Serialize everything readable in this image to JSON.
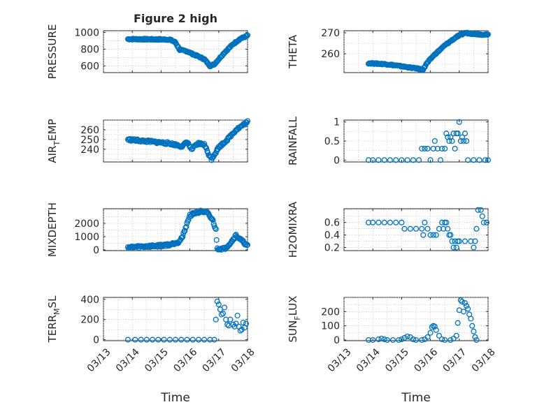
{
  "figure": {
    "title": "Figure 2 high",
    "colors": {
      "marker": "#0072bd",
      "axes": "#262626",
      "grid": "#bdbdbd",
      "background": "#ffffff"
    }
  },
  "chart_data": [
    {
      "id": "pressure",
      "type": "scatter",
      "marker": "circle",
      "title": "Figure 2 high",
      "xlabel": "",
      "ylabel": "PRESSURE",
      "xlim": [
        0,
        5
      ],
      "ylim": [
        520,
        1020
      ],
      "yticks": [
        600,
        800,
        1000
      ],
      "xticklabels": [
        "03/13",
        "03/14",
        "03/15",
        "03/16",
        "03/17",
        "03/18"
      ],
      "show_xticklabels": false,
      "grid": true,
      "profile": [
        [
          0.85,
          920
        ],
        [
          2.3,
          915
        ],
        [
          2.5,
          880
        ],
        [
          2.65,
          790
        ],
        [
          2.9,
          775
        ],
        [
          3.1,
          740
        ],
        [
          3.25,
          720
        ],
        [
          3.5,
          680
        ],
        [
          3.7,
          600
        ],
        [
          3.85,
          620
        ],
        [
          4.2,
          760
        ],
        [
          4.5,
          860
        ],
        [
          4.75,
          925
        ],
        [
          5.0,
          960
        ]
      ],
      "noise": 8
    },
    {
      "id": "theta",
      "type": "scatter",
      "marker": "circle",
      "xlabel": "",
      "ylabel": "THETA",
      "xlim": [
        0,
        5
      ],
      "ylim": [
        251,
        271
      ],
      "yticks": [
        260,
        270
      ],
      "xticklabels": [
        "03/13",
        "03/14",
        "03/15",
        "03/16",
        "03/17",
        "03/18"
      ],
      "show_xticklabels": false,
      "grid": true,
      "profile": [
        [
          0.85,
          255.5
        ],
        [
          1.5,
          255
        ],
        [
          2.0,
          254
        ],
        [
          2.5,
          253
        ],
        [
          2.75,
          252.5
        ],
        [
          2.85,
          255
        ],
        [
          3.1,
          259
        ],
        [
          3.5,
          264
        ],
        [
          3.9,
          268
        ],
        [
          4.2,
          270
        ],
        [
          4.5,
          269.5
        ],
        [
          5.0,
          269
        ]
      ],
      "noise": 0.3
    },
    {
      "id": "air_temp",
      "type": "scatter",
      "marker": "circle",
      "xlabel": "",
      "ylabel": "AIR_TEMP",
      "ylabel_parts": [
        "AIR",
        "T",
        "EMP"
      ],
      "xlim": [
        0,
        5
      ],
      "ylim": [
        227,
        270
      ],
      "yticks": [
        240,
        250,
        260
      ],
      "xticklabels": [
        "03/13",
        "03/14",
        "03/15",
        "03/16",
        "03/17",
        "03/18"
      ],
      "show_xticklabels": false,
      "grid": true,
      "profile": [
        [
          0.85,
          250
        ],
        [
          1.6,
          248
        ],
        [
          2.3,
          246
        ],
        [
          2.6,
          244
        ],
        [
          2.75,
          243
        ],
        [
          2.9,
          248
        ],
        [
          3.05,
          240
        ],
        [
          3.3,
          246
        ],
        [
          3.5,
          245
        ],
        [
          3.65,
          235
        ],
        [
          3.75,
          230
        ],
        [
          4.0,
          242
        ],
        [
          4.3,
          250
        ],
        [
          4.6,
          260
        ],
        [
          5.0,
          268
        ]
      ],
      "noise": 1.2
    },
    {
      "id": "rainfall",
      "type": "scatter",
      "marker": "circle",
      "xlabel": "",
      "ylabel": "RAINFALL",
      "xlim": [
        0,
        5
      ],
      "ylim": [
        -0.05,
        1.05
      ],
      "yticks": [
        0,
        0.5,
        1
      ],
      "xticklabels": [
        "03/13",
        "03/14",
        "03/15",
        "03/16",
        "03/17",
        "03/18"
      ],
      "show_xticklabels": false,
      "grid": true,
      "points": [
        [
          0.85,
          0
        ],
        [
          1.0,
          0
        ],
        [
          1.2,
          0
        ],
        [
          1.4,
          0
        ],
        [
          1.6,
          0
        ],
        [
          1.8,
          0
        ],
        [
          2.0,
          0
        ],
        [
          2.2,
          0
        ],
        [
          2.4,
          0
        ],
        [
          2.6,
          0
        ],
        [
          2.7,
          0.3
        ],
        [
          2.8,
          0.3
        ],
        [
          2.9,
          0.3
        ],
        [
          3.0,
          0
        ],
        [
          3.1,
          0.3
        ],
        [
          3.15,
          0.5
        ],
        [
          3.25,
          0.3
        ],
        [
          3.35,
          0
        ],
        [
          3.4,
          0.3
        ],
        [
          3.5,
          0.3
        ],
        [
          3.55,
          0.7
        ],
        [
          3.6,
          0.6
        ],
        [
          3.65,
          0.5
        ],
        [
          3.7,
          0.6
        ],
        [
          3.75,
          0.5
        ],
        [
          3.8,
          0.7
        ],
        [
          3.85,
          0.3
        ],
        [
          3.9,
          0.7
        ],
        [
          3.95,
          0.7
        ],
        [
          4.0,
          1.0
        ],
        [
          4.05,
          0.5
        ],
        [
          4.1,
          0.6
        ],
        [
          4.15,
          0.5
        ],
        [
          4.2,
          0.7
        ],
        [
          4.25,
          0.5
        ],
        [
          4.3,
          0
        ],
        [
          4.5,
          0
        ],
        [
          4.7,
          0
        ],
        [
          4.9,
          0
        ],
        [
          5.0,
          0
        ]
      ]
    },
    {
      "id": "mixdepth",
      "type": "scatter",
      "marker": "circle",
      "xlabel": "",
      "ylabel": "MIXDEPTH",
      "xlim": [
        0,
        5
      ],
      "ylim": [
        -50,
        3100
      ],
      "yticks": [
        0,
        1000,
        2000
      ],
      "xticklabels": [
        "03/13",
        "03/14",
        "03/15",
        "03/16",
        "03/17",
        "03/18"
      ],
      "show_xticklabels": false,
      "grid": true,
      "profile": [
        [
          0.85,
          200
        ],
        [
          1.8,
          300
        ],
        [
          2.3,
          400
        ],
        [
          2.6,
          600
        ],
        [
          2.75,
          1000
        ],
        [
          2.9,
          2000
        ],
        [
          3.0,
          2600
        ],
        [
          3.2,
          2800
        ],
        [
          3.4,
          2900
        ],
        [
          3.6,
          2800
        ],
        [
          3.7,
          2500
        ],
        [
          3.8,
          2200
        ],
        [
          3.9,
          1500
        ],
        [
          3.95,
          100
        ],
        [
          4.2,
          100
        ],
        [
          4.4,
          500
        ],
        [
          4.6,
          1100
        ],
        [
          4.75,
          800
        ],
        [
          5.0,
          300
        ]
      ],
      "noise": 90
    },
    {
      "id": "h2omixra",
      "type": "scatter",
      "marker": "circle",
      "xlabel": "",
      "ylabel": "H2OMIXRA",
      "xlim": [
        0,
        5
      ],
      "ylim": [
        0.15,
        0.82
      ],
      "yticks": [
        0.2,
        0.4,
        0.6
      ],
      "xticklabels": [
        "03/13",
        "03/14",
        "03/15",
        "03/16",
        "03/17",
        "03/18"
      ],
      "show_xticklabels": false,
      "grid": true,
      "points": [
        [
          0.85,
          0.6
        ],
        [
          1.0,
          0.6
        ],
        [
          1.2,
          0.6
        ],
        [
          1.4,
          0.6
        ],
        [
          1.6,
          0.6
        ],
        [
          1.8,
          0.6
        ],
        [
          2.0,
          0.6
        ],
        [
          2.1,
          0.5
        ],
        [
          2.3,
          0.5
        ],
        [
          2.5,
          0.5
        ],
        [
          2.7,
          0.5
        ],
        [
          2.75,
          0.4
        ],
        [
          2.8,
          0.6
        ],
        [
          2.9,
          0.5
        ],
        [
          3.0,
          0.4
        ],
        [
          3.1,
          0.4
        ],
        [
          3.2,
          0.4
        ],
        [
          3.3,
          0.5
        ],
        [
          3.4,
          0.6
        ],
        [
          3.45,
          0.5
        ],
        [
          3.5,
          0.6
        ],
        [
          3.55,
          0.6
        ],
        [
          3.6,
          0.5
        ],
        [
          3.65,
          0.4
        ],
        [
          3.7,
          0.4
        ],
        [
          3.75,
          0.3
        ],
        [
          3.8,
          0.2
        ],
        [
          3.85,
          0.3
        ],
        [
          3.9,
          0.2
        ],
        [
          3.95,
          0.3
        ],
        [
          4.0,
          0.3
        ],
        [
          4.2,
          0.3
        ],
        [
          4.4,
          0.3
        ],
        [
          4.5,
          0.2
        ],
        [
          4.55,
          0.3
        ],
        [
          4.6,
          0.5
        ],
        [
          4.65,
          0.8
        ],
        [
          4.75,
          0.8
        ],
        [
          4.8,
          0.7
        ],
        [
          4.85,
          0.6
        ],
        [
          4.95,
          0.6
        ]
      ]
    },
    {
      "id": "terr_msl",
      "type": "scatter",
      "marker": "circle",
      "xlabel": "Time",
      "ylabel": "TERR_MSL",
      "ylabel_parts": [
        "TERR",
        "M",
        "SL"
      ],
      "xlim": [
        0,
        5
      ],
      "ylim": [
        -10,
        420
      ],
      "yticks": [
        0,
        200,
        400
      ],
      "xticklabels": [
        "03/13",
        "03/14",
        "03/15",
        "03/16",
        "03/17",
        "03/18"
      ],
      "show_xticklabels": true,
      "grid": true,
      "points": [
        [
          0.85,
          0
        ],
        [
          1.1,
          0
        ],
        [
          1.3,
          0
        ],
        [
          1.5,
          0
        ],
        [
          1.7,
          0
        ],
        [
          1.9,
          0
        ],
        [
          2.1,
          0
        ],
        [
          2.3,
          0
        ],
        [
          2.5,
          0
        ],
        [
          2.7,
          0
        ],
        [
          2.9,
          0
        ],
        [
          3.1,
          0
        ],
        [
          3.3,
          0
        ],
        [
          3.5,
          0
        ],
        [
          3.7,
          0
        ],
        [
          3.85,
          0
        ],
        [
          3.9,
          200
        ],
        [
          3.95,
          380
        ],
        [
          4.0,
          350
        ],
        [
          4.05,
          300
        ],
        [
          4.1,
          250
        ],
        [
          4.15,
          260
        ],
        [
          4.2,
          320
        ],
        [
          4.25,
          200
        ],
        [
          4.3,
          150
        ],
        [
          4.35,
          140
        ],
        [
          4.4,
          200
        ],
        [
          4.5,
          150
        ],
        [
          4.55,
          130
        ],
        [
          4.6,
          160
        ],
        [
          4.65,
          240
        ],
        [
          4.7,
          130
        ],
        [
          4.75,
          90
        ],
        [
          4.8,
          100
        ],
        [
          4.85,
          170
        ],
        [
          4.9,
          120
        ],
        [
          4.95,
          160
        ]
      ]
    },
    {
      "id": "sun_flux",
      "type": "scatter",
      "marker": "circle",
      "xlabel": "Time",
      "ylabel": "SUN_FLUX",
      "ylabel_parts": [
        "SUN",
        "F",
        "LUX"
      ],
      "xlim": [
        0,
        5
      ],
      "ylim": [
        -5,
        300
      ],
      "yticks": [
        0,
        100,
        200
      ],
      "xticklabels": [
        "03/13",
        "03/14",
        "03/15",
        "03/16",
        "03/17",
        "03/18"
      ],
      "show_xticklabels": true,
      "grid": true,
      "points": [
        [
          0.85,
          0
        ],
        [
          1.0,
          0
        ],
        [
          1.2,
          5
        ],
        [
          1.3,
          10
        ],
        [
          1.4,
          5
        ],
        [
          1.5,
          0
        ],
        [
          1.7,
          0
        ],
        [
          1.9,
          0
        ],
        [
          2.0,
          5
        ],
        [
          2.1,
          15
        ],
        [
          2.2,
          25
        ],
        [
          2.3,
          20
        ],
        [
          2.4,
          5
        ],
        [
          2.5,
          0
        ],
        [
          2.7,
          0
        ],
        [
          2.8,
          5
        ],
        [
          2.9,
          20
        ],
        [
          3.0,
          50
        ],
        [
          3.05,
          90
        ],
        [
          3.1,
          100
        ],
        [
          3.15,
          95
        ],
        [
          3.2,
          70
        ],
        [
          3.3,
          30
        ],
        [
          3.4,
          5
        ],
        [
          3.5,
          0
        ],
        [
          3.7,
          0
        ],
        [
          3.8,
          10
        ],
        [
          3.9,
          30
        ],
        [
          3.95,
          120
        ],
        [
          4.0,
          210
        ],
        [
          4.05,
          280
        ],
        [
          4.1,
          270
        ],
        [
          4.15,
          200
        ],
        [
          4.2,
          260
        ],
        [
          4.25,
          240
        ],
        [
          4.3,
          220
        ],
        [
          4.35,
          180
        ],
        [
          4.4,
          150
        ],
        [
          4.45,
          100
        ],
        [
          4.5,
          60
        ],
        [
          4.55,
          20
        ],
        [
          4.6,
          0
        ]
      ]
    }
  ]
}
